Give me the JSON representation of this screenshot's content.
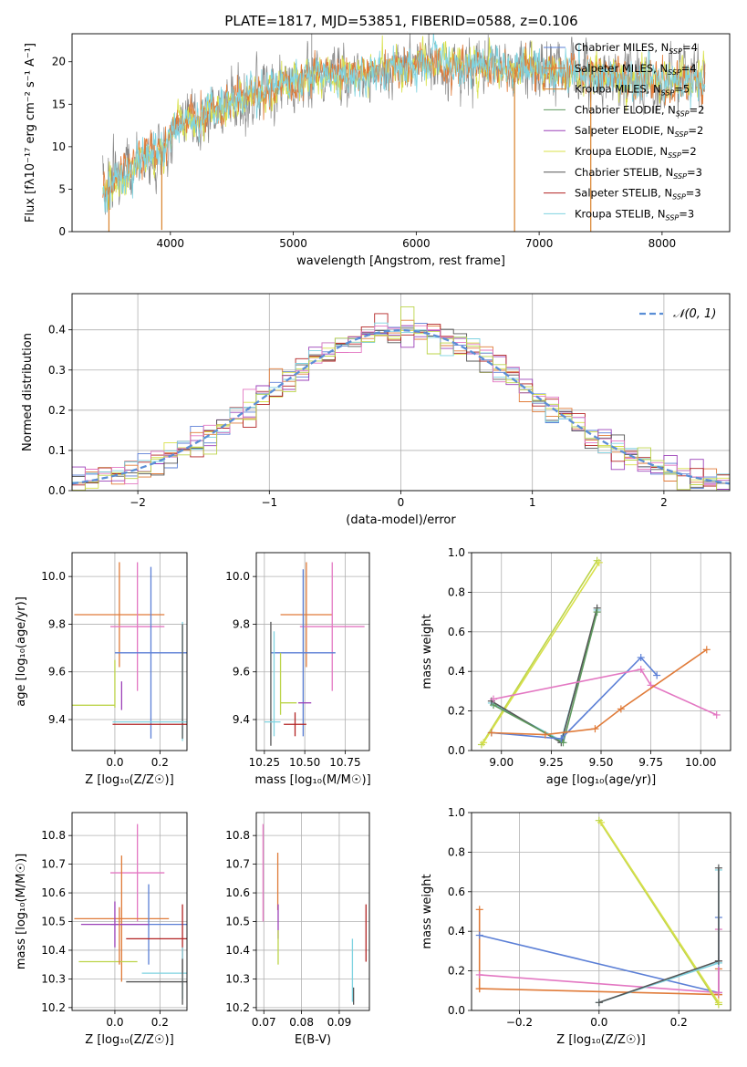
{
  "figure": {
    "title": "PLATE=1817, MJD=53851, FIBERID=0588, z=0.106"
  },
  "colors": {
    "Chabrier MILES": "#5b7fd6",
    "Salpeter MILES": "#e07b39",
    "Kroupa MILES": "#d9822b",
    "Chabrier ELODIE": "#5e9a5e",
    "Salpeter ELODIE": "#9b40b8",
    "Kroupa ELODIE": "#d8e04a",
    "Chabrier STELIB": "#555555",
    "Salpeter STELIB": "#b22222",
    "Kroupa STELIB": "#7fd3e0",
    "gauss": "#5b8ed6",
    "pink": "#e377c2",
    "lime": "#bcd44a",
    "spectrum_gray": "#888888"
  },
  "chart_data": [
    {
      "id": "spectrum",
      "type": "line",
      "xlabel": "wavelength [Angstrom, rest frame]",
      "ylabel": "Flux [fλ10⁻¹⁷ erg cm⁻² s⁻¹ A⁻¹]",
      "xlim": [
        3200,
        8550
      ],
      "ylim": [
        0,
        23.3
      ],
      "xticks": [
        4000,
        5000,
        6000,
        7000,
        8000
      ],
      "yticks": [
        0,
        5,
        10,
        15,
        20
      ],
      "grid": false,
      "legend": "upper right",
      "legend_entries": [
        {
          "label": "Chabrier MILES, N",
          "sub": "SSP",
          "tail": "=4"
        },
        {
          "label": "Salpeter MILES, N",
          "sub": "SSP",
          "tail": "=4"
        },
        {
          "label": "Kroupa MILES, N",
          "sub": "SSP",
          "tail": "=5"
        },
        {
          "label": "Chabrier ELODIE, N",
          "sub": "SSP",
          "tail": "=2"
        },
        {
          "label": "Salpeter ELODIE, N",
          "sub": "SSP",
          "tail": "=2"
        },
        {
          "label": "Kroupa ELODIE, N",
          "sub": "SSP",
          "tail": "=2"
        },
        {
          "label": "Chabrier STELIB, N",
          "sub": "SSP",
          "tail": "=3"
        },
        {
          "label": "Salpeter STELIB, N",
          "sub": "SSP",
          "tail": "=3"
        },
        {
          "label": "Kroupa STELIB, N",
          "sub": "SSP",
          "tail": "=3"
        }
      ],
      "continuum": [
        [
          3450,
          4.6
        ],
        [
          3600,
          6.5
        ],
        [
          3800,
          9.0
        ],
        [
          3950,
          9.5
        ],
        [
          4050,
          12.5
        ],
        [
          4300,
          14.0
        ],
        [
          4600,
          16.0
        ],
        [
          4900,
          17.0
        ],
        [
          5200,
          18.5
        ],
        [
          5500,
          18.5
        ],
        [
          5800,
          19.0
        ],
        [
          6100,
          19.8
        ],
        [
          6500,
          19.5
        ],
        [
          6800,
          19.3
        ],
        [
          7100,
          19.0
        ],
        [
          7400,
          18.6
        ],
        [
          7800,
          18.0
        ],
        [
          8100,
          17.6
        ],
        [
          8350,
          17.2
        ]
      ],
      "spikes_down": [
        {
          "x": 3500,
          "y": 0
        },
        {
          "x": 3930,
          "y": 0.2
        },
        {
          "x": 6800,
          "y": 0
        },
        {
          "x": 7420,
          "y": 0
        }
      ],
      "spikes_up": [
        {
          "x": 5150,
          "y": 23.3
        },
        {
          "x": 5900,
          "y": 21.8
        },
        {
          "x": 6560,
          "y": 22.5
        }
      ]
    },
    {
      "id": "residual_histogram",
      "type": "area",
      "xlabel": "(data-model)/error",
      "ylabel": "Normed distribution",
      "xlim": [
        -2.5,
        2.5
      ],
      "ylim": [
        0,
        0.49
      ],
      "xticks": [
        -2,
        -1,
        0,
        1,
        2
      ],
      "yticks": [
        0.0,
        0.1,
        0.2,
        0.3,
        0.4
      ],
      "grid": true,
      "legend": "upper right",
      "legend_entries": [
        {
          "label": "𝒩(0, 1)"
        }
      ],
      "bin_width": 0.1
    },
    {
      "id": "age_vs_Z",
      "type": "scatter",
      "xlabel": "Z [log₁₀(Z/Z☉)]",
      "ylabel": "age  [log₁₀(age/yr)]",
      "xlim": [
        -0.19,
        0.32
      ],
      "ylim": [
        9.27,
        10.1
      ],
      "xticks": [
        0.0,
        0.2
      ],
      "yticks": [
        9.4,
        9.6,
        9.8,
        10.0
      ],
      "grid": true,
      "points": [
        {
          "c": "#e07b39",
          "x": 0.02,
          "xerr": 0.2,
          "y": 9.84,
          "yerr": 0.22
        },
        {
          "c": "#e377c2",
          "x": 0.1,
          "xerr": 0.12,
          "y": 9.79,
          "yerr": 0.27
        },
        {
          "c": "#5b7fd6",
          "x": 0.16,
          "xerr": 0.16,
          "y": 9.68,
          "yerr": 0.36
        },
        {
          "c": "#7fd3e0",
          "x": 0.3,
          "xerr": 0.0,
          "y": 9.56,
          "yerr": 0.25
        },
        {
          "c": "#555555",
          "x": 0.3,
          "xerr": 0.0,
          "y": 9.56,
          "yerr": 0.24
        },
        {
          "c": "#bcd44a",
          "x": -0.1,
          "xerr": 0.1,
          "y": 9.46,
          "yerr": 0.0
        },
        {
          "c": "#bcd44a",
          "x": 0.0,
          "xerr": 0.0,
          "y": 9.55,
          "yerr": 0.1
        },
        {
          "c": "#9b40b8",
          "x": 0.03,
          "xerr": 0.0,
          "y": 9.5,
          "yerr": 0.06
        },
        {
          "c": "#b22222",
          "x": 0.19,
          "xerr": 0.2,
          "y": 9.38,
          "yerr": 0.0
        },
        {
          "c": "#7fd3e0",
          "x": 0.19,
          "xerr": 0.2,
          "y": 9.39,
          "yerr": 0.0
        }
      ]
    },
    {
      "id": "age_vs_mass",
      "type": "scatter",
      "xlabel": "mass [log₁₀(M/M☉)]",
      "ylabel": "",
      "xlim": [
        10.2,
        10.9
      ],
      "ylim": [
        9.27,
        10.1
      ],
      "xticks": [
        10.25,
        10.5,
        10.75
      ],
      "yticks": [
        9.4,
        9.6,
        9.8,
        10.0
      ],
      "grid": true,
      "points": [
        {
          "c": "#e07b39",
          "x": 10.51,
          "xerr": 0.16,
          "y": 9.84,
          "yerr": 0.22
        },
        {
          "c": "#e377c2",
          "x": 10.67,
          "xerr": 0.2,
          "y": 9.79,
          "yerr": 0.27
        },
        {
          "c": "#5b7fd6",
          "x": 10.49,
          "xerr": 0.2,
          "y": 9.68,
          "yerr": 0.35
        },
        {
          "c": "#555555",
          "x": 10.29,
          "xerr": 0.0,
          "y": 9.55,
          "yerr": 0.26
        },
        {
          "c": "#7fd3e0",
          "x": 10.31,
          "xerr": 0.0,
          "y": 9.55,
          "yerr": 0.22
        },
        {
          "c": "#bcd44a",
          "x": 10.35,
          "xerr": 0.0,
          "y": 9.55,
          "yerr": 0.13
        },
        {
          "c": "#bcd44a",
          "x": 10.4,
          "xerr": 0.05,
          "y": 9.47,
          "yerr": 0.0
        },
        {
          "c": "#9b40b8",
          "x": 10.5,
          "xerr": 0.04,
          "y": 9.47,
          "yerr": 0.0
        },
        {
          "c": "#b22222",
          "x": 10.44,
          "xerr": 0.07,
          "y": 9.38,
          "yerr": 0.05
        },
        {
          "c": "#7fd3e0",
          "x": 10.3,
          "xerr": 0.05,
          "y": 9.39,
          "yerr": 0.0
        }
      ]
    },
    {
      "id": "weight_vs_age",
      "type": "line",
      "xlabel": "age  [log₁₀(age/yr)]",
      "ylabel": "mass weight",
      "xlim": [
        8.85,
        10.15
      ],
      "ylim": [
        0,
        1.0
      ],
      "xticks": [
        9.0,
        9.25,
        9.5,
        9.75,
        10.0
      ],
      "yticks": [
        0.0,
        0.2,
        0.4,
        0.6,
        0.8,
        1.0
      ],
      "grid": true,
      "series": [
        {
          "c": "#bcd44a",
          "x": [
            8.9,
            9.48
          ],
          "y": [
            0.03,
            0.96
          ]
        },
        {
          "c": "#d8e04a",
          "x": [
            8.91,
            9.49
          ],
          "y": [
            0.04,
            0.95
          ]
        },
        {
          "c": "#7fd3e0",
          "x": [
            8.95,
            9.3,
            9.48
          ],
          "y": [
            0.24,
            0.05,
            0.71
          ]
        },
        {
          "c": "#555555",
          "x": [
            8.95,
            9.3,
            9.48
          ],
          "y": [
            0.25,
            0.04,
            0.72
          ]
        },
        {
          "c": "#5e9a5e",
          "x": [
            8.96,
            9.31,
            9.48
          ],
          "y": [
            0.23,
            0.04,
            0.7
          ]
        },
        {
          "c": "#5b7fd6",
          "x": [
            8.95,
            9.3,
            9.7,
            9.78
          ],
          "y": [
            0.09,
            0.06,
            0.47,
            0.38
          ]
        },
        {
          "c": "#e377c2",
          "x": [
            8.96,
            9.7,
            9.75,
            10.08
          ],
          "y": [
            0.26,
            0.41,
            0.33,
            0.18
          ]
        },
        {
          "c": "#e07b39",
          "x": [
            8.95,
            9.22,
            9.47,
            9.6,
            10.03
          ],
          "y": [
            0.09,
            0.08,
            0.11,
            0.21,
            0.51
          ]
        }
      ]
    },
    {
      "id": "mass_vs_Z",
      "type": "scatter",
      "xlabel": "Z [log₁₀(Z/Z☉)]",
      "ylabel": "mass [log₁₀(M/M☉)]",
      "xlim": [
        -0.19,
        0.32
      ],
      "ylim": [
        10.19,
        10.88
      ],
      "xticks": [
        0.0,
        0.2
      ],
      "yticks": [
        10.2,
        10.3,
        10.4,
        10.5,
        10.6,
        10.7,
        10.8
      ],
      "grid": true,
      "points": [
        {
          "c": "#e377c2",
          "x": 0.1,
          "xerr": 0.12,
          "y": 10.67,
          "yerr": 0.17
        },
        {
          "c": "#e07b39",
          "x": 0.03,
          "xerr": 0.21,
          "y": 10.51,
          "yerr": 0.22
        },
        {
          "c": "#5b7fd6",
          "x": 0.15,
          "xerr": 0.17,
          "y": 10.49,
          "yerr": 0.14
        },
        {
          "c": "#9b40b8",
          "x": 0.0,
          "xerr": 0.15,
          "y": 10.49,
          "yerr": 0.08
        },
        {
          "c": "#b22222",
          "x": 0.3,
          "xerr": 0.25,
          "y": 10.44,
          "yerr": 0.12
        },
        {
          "c": "#bcd44a",
          "x": -0.03,
          "xerr": 0.13,
          "y": 10.36,
          "yerr": 0.0
        },
        {
          "c": "#7fd3e0",
          "x": 0.3,
          "xerr": 0.18,
          "y": 10.32,
          "yerr": 0.09
        },
        {
          "c": "#555555",
          "x": 0.3,
          "xerr": 0.25,
          "y": 10.29,
          "yerr": 0.08
        },
        {
          "c": "#e07b39",
          "x": 0.02,
          "xerr": 0.0,
          "y": 10.45,
          "yerr": 0.1
        }
      ]
    },
    {
      "id": "mass_vs_ebv",
      "type": "scatter",
      "xlabel": "E(B-V)",
      "ylabel": "",
      "xlim": [
        0.068,
        0.098
      ],
      "ylim": [
        10.19,
        10.88
      ],
      "xticks": [
        0.07,
        0.08,
        0.09
      ],
      "yticks": [
        10.2,
        10.3,
        10.4,
        10.5,
        10.6,
        10.7,
        10.8
      ],
      "grid": true,
      "points": [
        {
          "c": "#e377c2",
          "x": 0.0698,
          "xerr": 0.0,
          "y": 10.67,
          "yerr": 0.17
        },
        {
          "c": "#e07b39",
          "x": 0.0737,
          "xerr": 0.0,
          "y": 10.64,
          "yerr": 0.1
        },
        {
          "c": "#9b40b8",
          "x": 0.0738,
          "xerr": 0.0,
          "y": 10.5,
          "yerr": 0.06
        },
        {
          "c": "#bcd44a",
          "x": 0.0738,
          "xerr": 0.0,
          "y": 10.41,
          "yerr": 0.06
        },
        {
          "c": "#7fd3e0",
          "x": 0.0935,
          "xerr": 0.0,
          "y": 10.33,
          "yerr": 0.11
        },
        {
          "c": "#555555",
          "x": 0.0938,
          "xerr": 0.0,
          "y": 10.24,
          "yerr": 0.03
        },
        {
          "c": "#b22222",
          "x": 0.0971,
          "xerr": 0.0,
          "y": 10.46,
          "yerr": 0.1
        }
      ]
    },
    {
      "id": "weight_vs_Z",
      "type": "line",
      "xlabel": "Z [log₁₀(Z/Z☉)]",
      "ylabel": "mass weight",
      "xlim": [
        -0.32,
        0.33
      ],
      "ylim": [
        0,
        1.0
      ],
      "xticks": [
        -0.2,
        0.0,
        0.2
      ],
      "yticks": [
        0.0,
        0.2,
        0.4,
        0.6,
        0.8,
        1.0
      ],
      "grid": true,
      "series": [
        {
          "c": "#e07b39",
          "x": [
            -0.3,
            -0.3
          ],
          "y": [
            0.11,
            0.51
          ]
        },
        {
          "c": "#e07b39",
          "x": [
            -0.3,
            0.3
          ],
          "y": [
            0.11,
            0.08
          ]
        },
        {
          "c": "#e07b39",
          "x": [
            0.3,
            0.3
          ],
          "y": [
            0.08,
            0.21
          ]
        },
        {
          "c": "#5b7fd6",
          "x": [
            -0.3,
            0.3
          ],
          "y": [
            0.38,
            0.09
          ]
        },
        {
          "c": "#5b7fd6",
          "x": [
            0.3,
            0.3
          ],
          "y": [
            0.09,
            0.47
          ]
        },
        {
          "c": "#e377c2",
          "x": [
            -0.3,
            0.3
          ],
          "y": [
            0.18,
            0.09
          ]
        },
        {
          "c": "#e377c2",
          "x": [
            0.3,
            0.3
          ],
          "y": [
            0.09,
            0.41
          ]
        },
        {
          "c": "#bcd44a",
          "x": [
            0.0,
            0.3
          ],
          "y": [
            0.96,
            0.03
          ]
        },
        {
          "c": "#d8e04a",
          "x": [
            0.005,
            0.3
          ],
          "y": [
            0.95,
            0.04
          ]
        },
        {
          "c": "#7fd3e0",
          "x": [
            0.0,
            0.3
          ],
          "y": [
            0.04,
            0.24
          ]
        },
        {
          "c": "#555555",
          "x": [
            0.0,
            0.3
          ],
          "y": [
            0.04,
            0.25
          ]
        },
        {
          "c": "#7fd3e0",
          "x": [
            0.3,
            0.3
          ],
          "y": [
            0.24,
            0.71
          ]
        },
        {
          "c": "#555555",
          "x": [
            0.3,
            0.3
          ],
          "y": [
            0.25,
            0.72
          ]
        }
      ]
    }
  ]
}
